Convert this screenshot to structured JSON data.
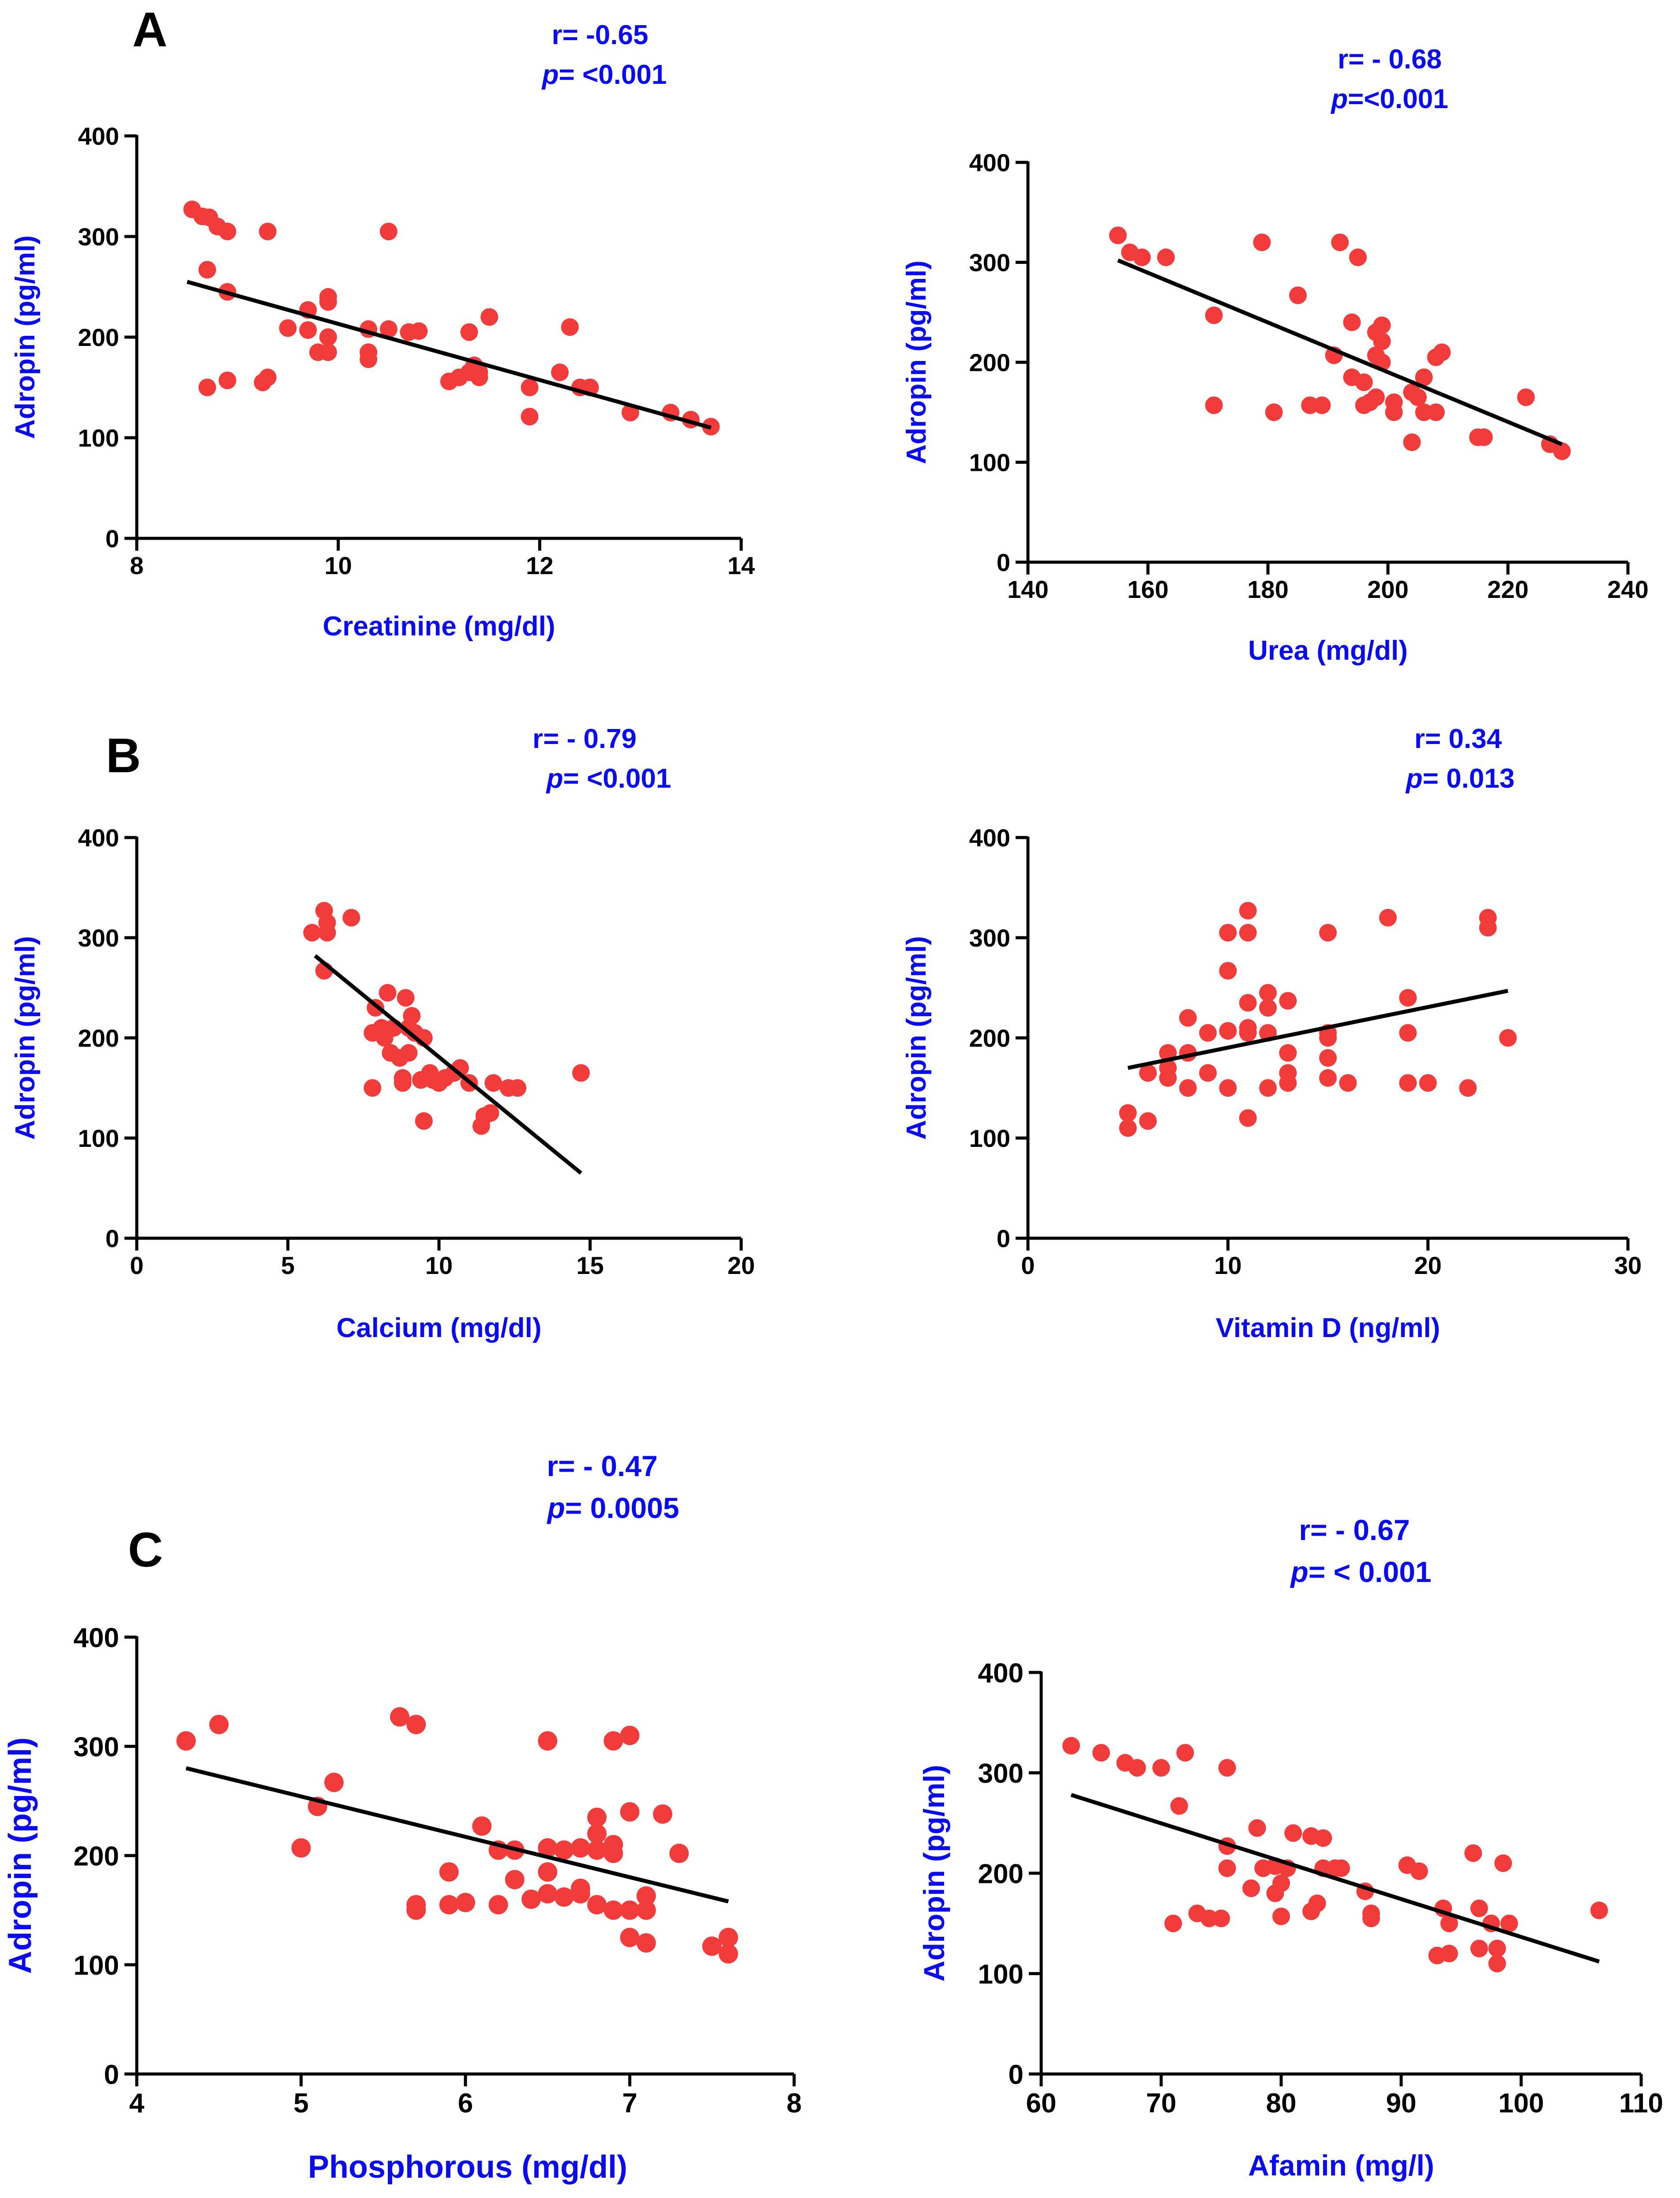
{
  "panels": [
    {
      "label": "A"
    },
    {
      "label": "B"
    },
    {
      "label": "C"
    }
  ],
  "colors": {
    "points": "#f23b3b",
    "fit_line": "#000000",
    "axis_titles": "#0b0bf0",
    "stats": "#0b0bf0",
    "axes": "#000000"
  },
  "chart_data": [
    {
      "type": "scatter",
      "panel": "A",
      "title": "",
      "xlabel": "Creatinine (mg/dl)",
      "ylabel": "Adropin (pg/ml)",
      "stat_r": "r= -0.65",
      "stat_p_sym": "p",
      "stat_p_rest": "= <0.001",
      "xlim": [
        8,
        14
      ],
      "ylim": [
        0,
        400
      ],
      "xticks": [
        8,
        10,
        12,
        14
      ],
      "yticks": [
        0,
        100,
        200,
        300,
        400
      ],
      "points": [
        [
          8.55,
          327
        ],
        [
          8.65,
          320
        ],
        [
          8.72,
          319
        ],
        [
          8.8,
          310
        ],
        [
          8.9,
          305
        ],
        [
          8.7,
          267
        ],
        [
          8.9,
          245
        ],
        [
          8.7,
          150
        ],
        [
          8.9,
          157
        ],
        [
          9.25,
          155
        ],
        [
          9.3,
          160
        ],
        [
          9.3,
          305
        ],
        [
          9.5,
          209
        ],
        [
          9.7,
          207
        ],
        [
          9.7,
          227
        ],
        [
          9.8,
          185
        ],
        [
          9.9,
          185
        ],
        [
          9.9,
          200
        ],
        [
          9.9,
          235
        ],
        [
          9.9,
          240
        ],
        [
          10.3,
          208
        ],
        [
          10.3,
          185
        ],
        [
          10.3,
          178
        ],
        [
          10.5,
          208
        ],
        [
          10.5,
          305
        ],
        [
          10.7,
          205
        ],
        [
          10.8,
          206
        ],
        [
          11.1,
          156
        ],
        [
          11.2,
          160
        ],
        [
          11.3,
          165
        ],
        [
          11.3,
          205
        ],
        [
          11.35,
          172
        ],
        [
          11.4,
          165
        ],
        [
          11.4,
          160
        ],
        [
          11.5,
          220
        ],
        [
          11.9,
          150
        ],
        [
          11.9,
          121
        ],
        [
          12.2,
          165
        ],
        [
          12.3,
          210
        ],
        [
          12.4,
          150
        ],
        [
          12.5,
          150
        ],
        [
          12.9,
          125
        ],
        [
          13.3,
          125
        ],
        [
          13.5,
          118
        ],
        [
          13.7,
          111
        ]
      ],
      "fit": [
        [
          8.5,
          255
        ],
        [
          13.7,
          110
        ]
      ]
    },
    {
      "type": "scatter",
      "panel": "A",
      "title": "",
      "xlabel": "Urea (mg/dl)",
      "ylabel": "Adropin (pg/ml)",
      "stat_r": "r= - 0.68",
      "stat_p_sym": "p",
      "stat_p_rest": "=<0.001",
      "xlim": [
        140,
        240
      ],
      "ylim": [
        0,
        400
      ],
      "xticks": [
        140,
        160,
        180,
        200,
        220,
        240
      ],
      "yticks": [
        0,
        100,
        200,
        300,
        400
      ],
      "points": [
        [
          155,
          327
        ],
        [
          157,
          310
        ],
        [
          159,
          305
        ],
        [
          163,
          305
        ],
        [
          171,
          247
        ],
        [
          171,
          157
        ],
        [
          179,
          320
        ],
        [
          181,
          150
        ],
        [
          185,
          267
        ],
        [
          187,
          157
        ],
        [
          189,
          157
        ],
        [
          191,
          207
        ],
        [
          192,
          320
        ],
        [
          194,
          240
        ],
        [
          195,
          305
        ],
        [
          194,
          185
        ],
        [
          196,
          180
        ],
        [
          196,
          157
        ],
        [
          197,
          160
        ],
        [
          198,
          230
        ],
        [
          198,
          207
        ],
        [
          198,
          165
        ],
        [
          199,
          237
        ],
        [
          199,
          221
        ],
        [
          199,
          200
        ],
        [
          201,
          160
        ],
        [
          201,
          150
        ],
        [
          204,
          120
        ],
        [
          204,
          170
        ],
        [
          205,
          165
        ],
        [
          206,
          185
        ],
        [
          206,
          150
        ],
        [
          208,
          150
        ],
        [
          208,
          205
        ],
        [
          209,
          210
        ],
        [
          215,
          125
        ],
        [
          216,
          125
        ],
        [
          223,
          165
        ],
        [
          227,
          118
        ],
        [
          229,
          111
        ]
      ],
      "fit": [
        [
          155,
          302
        ],
        [
          229,
          118
        ]
      ]
    },
    {
      "type": "scatter",
      "panel": "B",
      "title": "",
      "xlabel": "Calcium (mg/dl)",
      "ylabel": "Adropin (pg/ml)",
      "stat_r": "r= - 0.79",
      "stat_p_sym": "p",
      "stat_p_rest": "= <0.001",
      "xlim": [
        0,
        20
      ],
      "ylim": [
        0,
        400
      ],
      "xticks": [
        0,
        5,
        10,
        15,
        20
      ],
      "yticks": [
        0,
        100,
        200,
        300,
        400
      ],
      "points": [
        [
          5.8,
          305
        ],
        [
          6.2,
          327
        ],
        [
          6.3,
          315
        ],
        [
          6.3,
          305
        ],
        [
          6.2,
          267
        ],
        [
          7.1,
          320
        ],
        [
          7.8,
          150
        ],
        [
          7.8,
          205
        ],
        [
          7.9,
          230
        ],
        [
          8.1,
          210
        ],
        [
          8.2,
          200
        ],
        [
          8.3,
          245
        ],
        [
          8.4,
          185
        ],
        [
          8.5,
          210
        ],
        [
          8.7,
          180
        ],
        [
          8.8,
          160
        ],
        [
          8.8,
          155
        ],
        [
          8.9,
          240
        ],
        [
          9.0,
          185
        ],
        [
          9.0,
          210
        ],
        [
          9.1,
          222
        ],
        [
          9.2,
          205
        ],
        [
          9.4,
          158
        ],
        [
          9.5,
          200
        ],
        [
          9.5,
          117
        ],
        [
          9.7,
          165
        ],
        [
          9.8,
          158
        ],
        [
          10.0,
          155
        ],
        [
          10.2,
          160
        ],
        [
          10.5,
          165
        ],
        [
          10.7,
          170
        ],
        [
          11.0,
          155
        ],
        [
          11.4,
          112
        ],
        [
          11.5,
          122
        ],
        [
          11.7,
          125
        ],
        [
          11.8,
          155
        ],
        [
          12.3,
          150
        ],
        [
          12.6,
          150
        ],
        [
          14.7,
          165
        ]
      ],
      "fit": [
        [
          5.9,
          282
        ],
        [
          14.7,
          65
        ]
      ]
    },
    {
      "type": "scatter",
      "panel": "B",
      "title": "",
      "xlabel": "Vitamin D (ng/ml)",
      "ylabel": "Adropin (pg/ml)",
      "stat_r": "r= 0.34",
      "stat_p_sym": "p",
      "stat_p_rest": "= 0.013",
      "xlim": [
        0,
        30
      ],
      "ylim": [
        0,
        400
      ],
      "xticks": [
        0,
        10,
        20,
        30
      ],
      "yticks": [
        0,
        100,
        200,
        300,
        400
      ],
      "points": [
        [
          5,
          125
        ],
        [
          5,
          110
        ],
        [
          6,
          165
        ],
        [
          6,
          117
        ],
        [
          7,
          185
        ],
        [
          7,
          170
        ],
        [
          7,
          160
        ],
        [
          8,
          220
        ],
        [
          8,
          185
        ],
        [
          8,
          150
        ],
        [
          9,
          205
        ],
        [
          9,
          165
        ],
        [
          10,
          305
        ],
        [
          10,
          267
        ],
        [
          10,
          207
        ],
        [
          10,
          150
        ],
        [
          11,
          327
        ],
        [
          11,
          305
        ],
        [
          11,
          235
        ],
        [
          11,
          210
        ],
        [
          11,
          205
        ],
        [
          11,
          120
        ],
        [
          12,
          245
        ],
        [
          12,
          230
        ],
        [
          12,
          205
        ],
        [
          12,
          150
        ],
        [
          13,
          237
        ],
        [
          13,
          185
        ],
        [
          13,
          165
        ],
        [
          13,
          155
        ],
        [
          15,
          305
        ],
        [
          15,
          205
        ],
        [
          15,
          200
        ],
        [
          15,
          180
        ],
        [
          15,
          160
        ],
        [
          16,
          155
        ],
        [
          18,
          320
        ],
        [
          19,
          240
        ],
        [
          19,
          205
        ],
        [
          19,
          155
        ],
        [
          20,
          155
        ],
        [
          22,
          150
        ],
        [
          23,
          320
        ],
        [
          23,
          310
        ],
        [
          24,
          200
        ]
      ],
      "fit": [
        [
          5,
          170
        ],
        [
          24,
          247
        ]
      ]
    },
    {
      "type": "scatter",
      "panel": "C",
      "title": "",
      "xlabel": "Phosphorous (mg/dl)",
      "ylabel": "Adropin (pg/ml)",
      "stat_r": "r= - 0.47",
      "stat_p_sym": "p",
      "stat_p_rest": "= 0.0005",
      "xlim": [
        4,
        8
      ],
      "ylim": [
        0,
        400
      ],
      "xticks": [
        4,
        5,
        6,
        7,
        8
      ],
      "yticks": [
        0,
        100,
        200,
        300,
        400
      ],
      "points": [
        [
          4.3,
          305
        ],
        [
          4.5,
          320
        ],
        [
          5.0,
          207
        ],
        [
          5.1,
          245
        ],
        [
          5.2,
          267
        ],
        [
          5.6,
          327
        ],
        [
          5.7,
          320
        ],
        [
          5.7,
          155
        ],
        [
          5.7,
          150
        ],
        [
          5.9,
          185
        ],
        [
          5.9,
          155
        ],
        [
          6.0,
          157
        ],
        [
          6.1,
          227
        ],
        [
          6.2,
          205
        ],
        [
          6.2,
          155
        ],
        [
          6.3,
          205
        ],
        [
          6.3,
          178
        ],
        [
          6.4,
          160
        ],
        [
          6.5,
          305
        ],
        [
          6.5,
          207
        ],
        [
          6.5,
          185
        ],
        [
          6.5,
          165
        ],
        [
          6.6,
          205
        ],
        [
          6.6,
          162
        ],
        [
          6.7,
          207
        ],
        [
          6.7,
          170
        ],
        [
          6.7,
          165
        ],
        [
          6.8,
          235
        ],
        [
          6.8,
          220
        ],
        [
          6.8,
          205
        ],
        [
          6.8,
          155
        ],
        [
          6.9,
          305
        ],
        [
          6.9,
          210
        ],
        [
          6.9,
          202
        ],
        [
          6.9,
          150
        ],
        [
          7.0,
          310
        ],
        [
          7.0,
          240
        ],
        [
          7.0,
          150
        ],
        [
          7.0,
          125
        ],
        [
          7.1,
          163
        ],
        [
          7.1,
          150
        ],
        [
          7.1,
          120
        ],
        [
          7.2,
          238
        ],
        [
          7.3,
          202
        ],
        [
          7.5,
          117
        ],
        [
          7.6,
          125
        ],
        [
          7.6,
          110
        ]
      ],
      "fit": [
        [
          4.3,
          280
        ],
        [
          7.6,
          158
        ]
      ]
    },
    {
      "type": "scatter",
      "panel": "C",
      "title": "",
      "xlabel": "Afamin (mg/l)",
      "ylabel": "Adropin (pg/ml)",
      "stat_r": "r= - 0.67",
      "stat_p_sym": "p",
      "stat_p_rest": "= < 0.001",
      "xlim": [
        60,
        110
      ],
      "ylim": [
        0,
        400
      ],
      "xticks": [
        60,
        70,
        80,
        90,
        100,
        110
      ],
      "yticks": [
        0,
        100,
        200,
        300,
        400
      ],
      "points": [
        [
          62.5,
          327
        ],
        [
          65,
          320
        ],
        [
          67,
          310
        ],
        [
          68,
          305
        ],
        [
          70,
          305
        ],
        [
          71,
          150
        ],
        [
          71.5,
          267
        ],
        [
          72,
          320
        ],
        [
          73,
          160
        ],
        [
          74,
          155
        ],
        [
          75,
          155
        ],
        [
          75.5,
          305
        ],
        [
          75.5,
          227
        ],
        [
          75.5,
          205
        ],
        [
          77.5,
          185
        ],
        [
          78,
          245
        ],
        [
          78.5,
          205
        ],
        [
          79.5,
          207
        ],
        [
          79.5,
          180
        ],
        [
          80,
          190
        ],
        [
          80,
          157
        ],
        [
          80.5,
          205
        ],
        [
          81,
          240
        ],
        [
          82.5,
          237
        ],
        [
          82.5,
          162
        ],
        [
          83,
          170
        ],
        [
          83.5,
          235
        ],
        [
          83.5,
          205
        ],
        [
          84.5,
          205
        ],
        [
          85,
          205
        ],
        [
          87,
          182
        ],
        [
          87.5,
          160
        ],
        [
          87.5,
          155
        ],
        [
          90.5,
          208
        ],
        [
          91.5,
          202
        ],
        [
          93,
          118
        ],
        [
          93.5,
          165
        ],
        [
          94,
          150
        ],
        [
          94,
          120
        ],
        [
          96,
          220
        ],
        [
          96.5,
          165
        ],
        [
          96.5,
          125
        ],
        [
          97.5,
          150
        ],
        [
          98,
          110
        ],
        [
          98,
          125
        ],
        [
          98.5,
          210
        ],
        [
          99,
          150
        ],
        [
          106.5,
          163
        ]
      ],
      "fit": [
        [
          62.5,
          278
        ],
        [
          106.5,
          112
        ]
      ]
    }
  ]
}
